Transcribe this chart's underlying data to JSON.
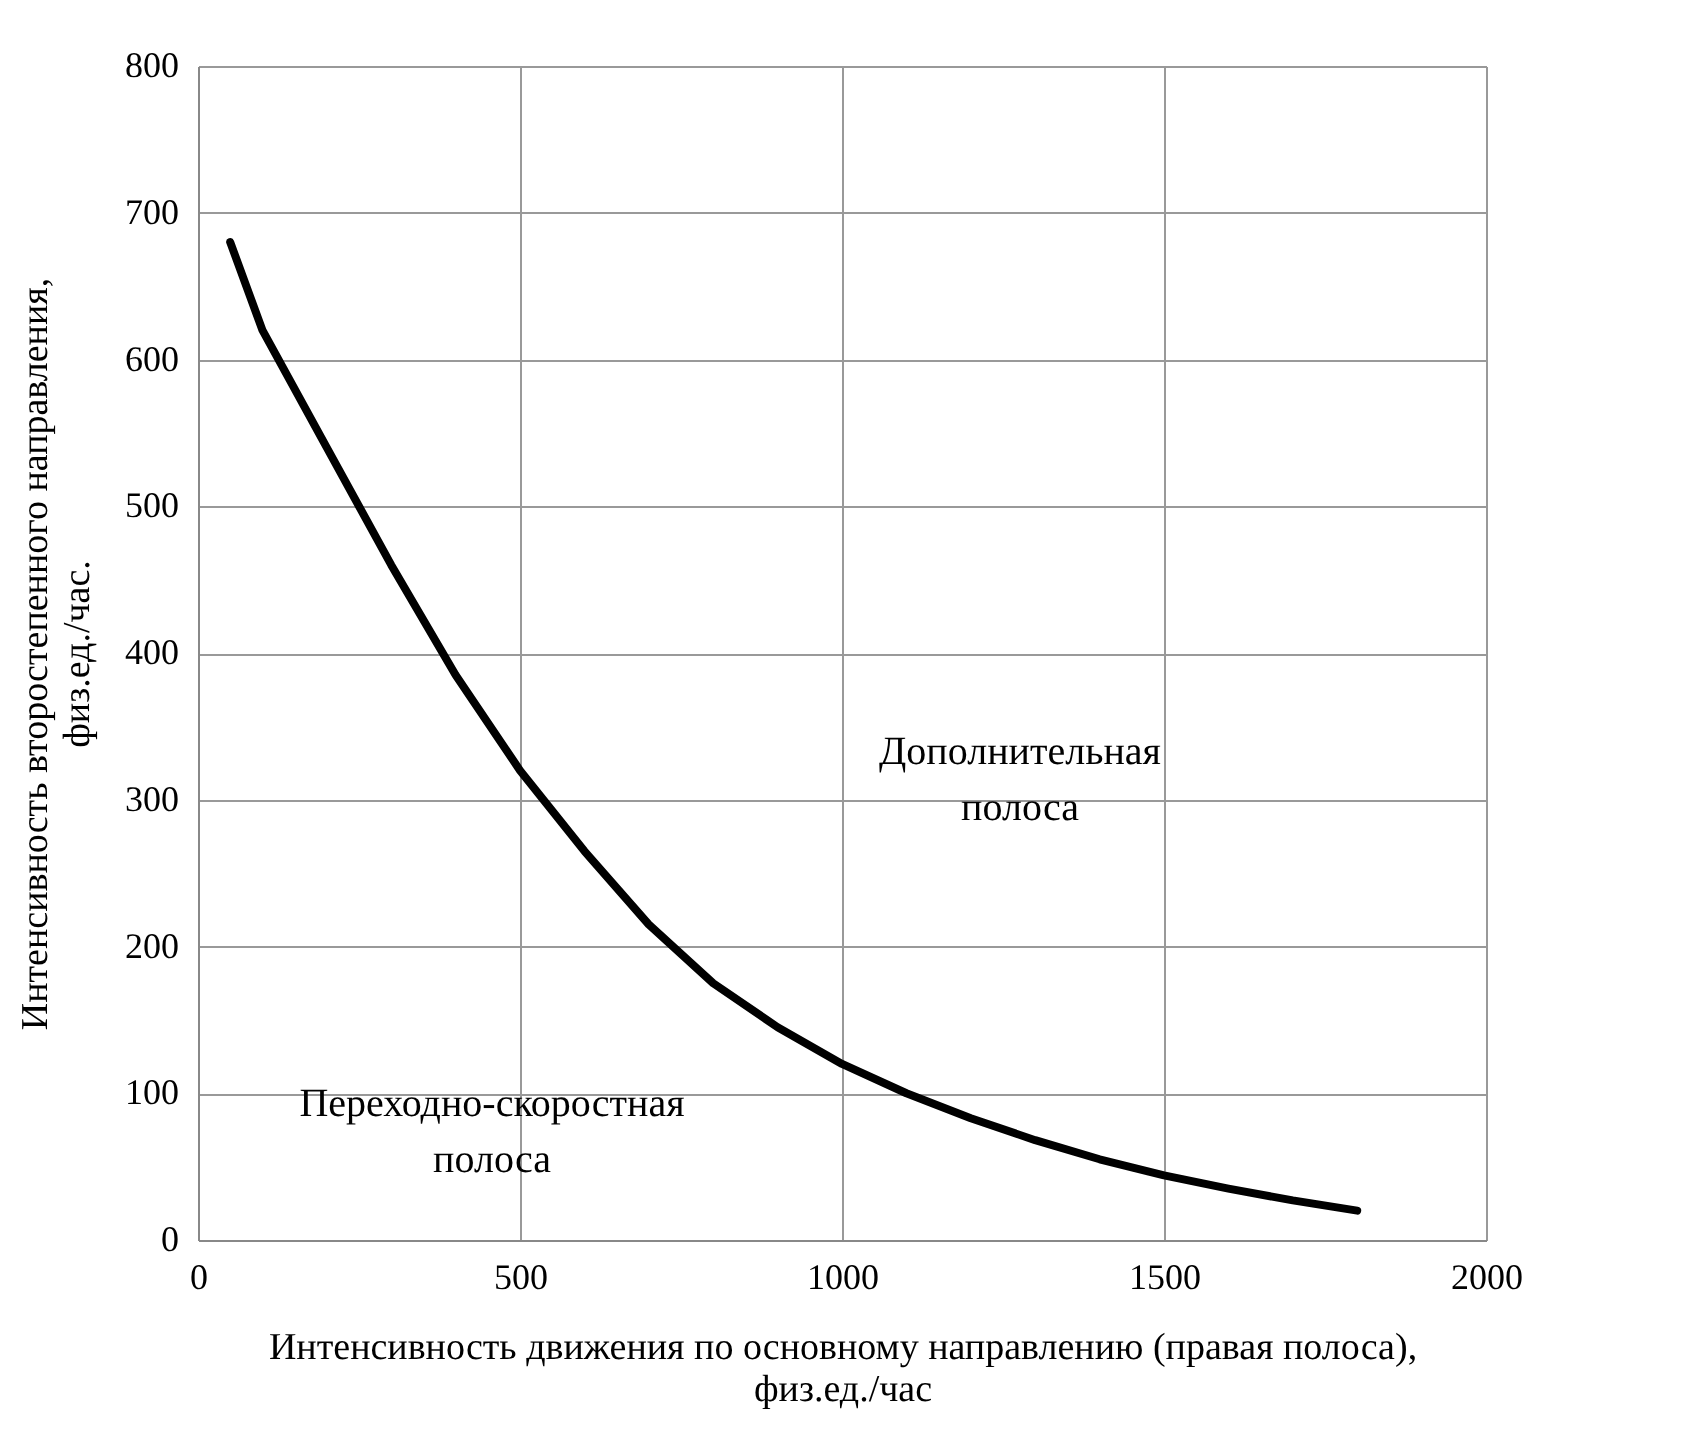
{
  "chart_data": {
    "type": "line",
    "xlabel": "Интенсивность движения по основному направлению (правая полоса), физ.ед./час",
    "ylabel": "Интенсивность второстепенного направления, физ.ед./час.",
    "x": [
      50,
      100,
      200,
      300,
      400,
      500,
      600,
      700,
      800,
      900,
      1000,
      1100,
      1200,
      1300,
      1400,
      1500,
      1600,
      1700,
      1800
    ],
    "series": [
      {
        "color": "#000000",
        "values": [
          680,
          620,
          540,
          460,
          385,
          320,
          265,
          215,
          175,
          145,
          120,
          100,
          83,
          68,
          55,
          44,
          35,
          27,
          20
        ]
      }
    ],
    "xlim": [
      0,
      2000
    ],
    "xticks": [
      0,
      500,
      1000,
      1500,
      2000
    ],
    "ylim": [
      0,
      800
    ],
    "yticks": [
      0,
      100,
      200,
      300,
      400,
      500,
      600,
      700,
      800
    ],
    "grid": true,
    "annotations": [
      "Дополнительная полоса",
      "Переходно-скоростная полоса"
    ]
  }
}
